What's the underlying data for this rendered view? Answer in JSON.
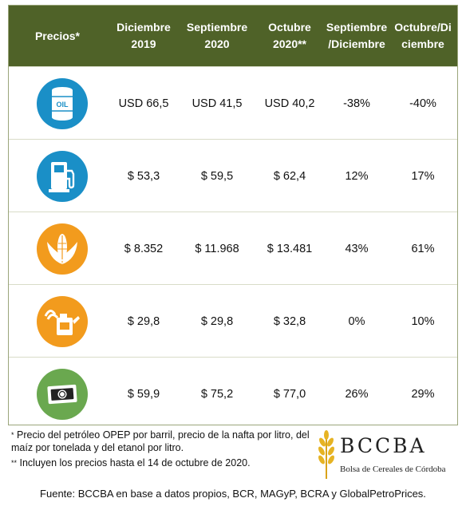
{
  "header": {
    "label": "Precios*",
    "col1": [
      "Diciembre",
      "2019"
    ],
    "col2": [
      "Septiembre",
      "2020"
    ],
    "col3": [
      "Octubre",
      "2020**"
    ],
    "col4": [
      "Septiembre",
      "/Diciembre"
    ],
    "col5": [
      "Octubre/Di",
      "ciembre"
    ]
  },
  "rows": [
    {
      "icon": "oil-barrel-icon",
      "icon_text": "OIL",
      "dic2019": "USD 66,5",
      "sep2020": "USD 41,5",
      "oct2020": "USD 40,2",
      "var_sep": "-38%",
      "var_oct": "-40%"
    },
    {
      "icon": "fuel-pump-icon",
      "dic2019": "$ 53,3",
      "sep2020": "$ 59,5",
      "oct2020": "$ 62,4",
      "var_sep": "12%",
      "var_oct": "17%"
    },
    {
      "icon": "corn-cob-icon",
      "dic2019": "$ 8.352",
      "sep2020": "$ 11.968",
      "oct2020": "$ 13.481",
      "var_sep": "43%",
      "var_oct": "61%"
    },
    {
      "icon": "ethanol-can-icon",
      "dic2019": "$ 29,8",
      "sep2020": "$ 29,8",
      "oct2020": "$ 32,8",
      "var_sep": "0%",
      "var_oct": "10%"
    },
    {
      "icon": "money-bill-icon",
      "dic2019": "$ 59,9",
      "sep2020": "$ 75,2",
      "oct2020": "$ 77,0",
      "var_sep": "26%",
      "var_oct": "29%"
    }
  ],
  "notes": {
    "note1_mark": "*",
    "note1": "Precio del petróleo OPEP por barril, precio de la nafta por litro, del maíz por tonelada y del etanol por litro.",
    "note2_mark": "**",
    "note2": "Incluyen los precios hasta el 14 de octubre de 2020."
  },
  "logo": {
    "name": "BCCBA",
    "subtitle": "Bolsa de Cereales de Córdoba"
  },
  "source": "Fuente: BCCBA en base a datos propios, BCR, MAGyP, BCRA y GlobalPetroPrices.",
  "colors": {
    "header_bg": "#4f6228",
    "oil_icon": "#1a8fc7",
    "agro_icon": "#f29b1d",
    "money_icon": "#6aa84f"
  }
}
